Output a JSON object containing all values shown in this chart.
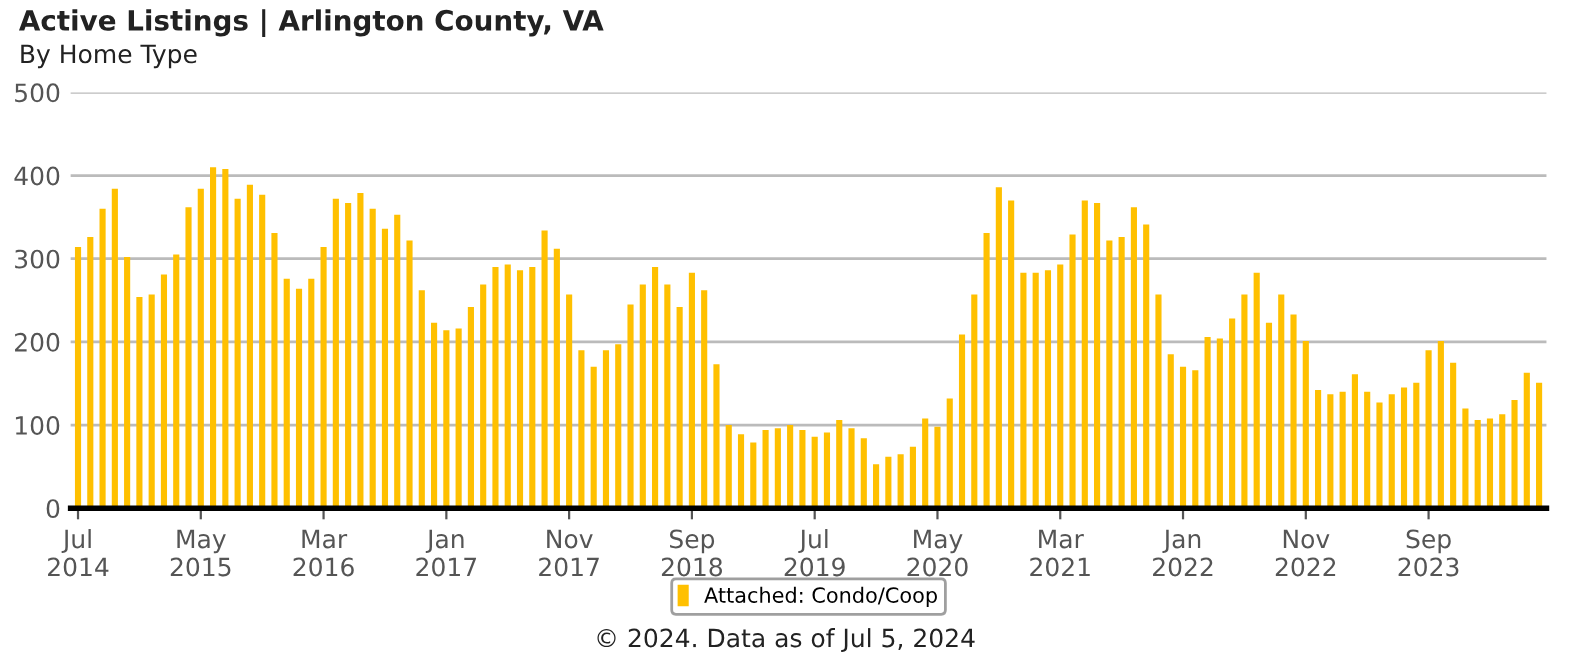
{
  "chart_data": {
    "type": "bar",
    "title": "Active Listings | Arlington County, VA",
    "subtitle": "By Home Type",
    "categories": [
      "Jul\n2014",
      null,
      null,
      null,
      null,
      null,
      null,
      null,
      null,
      null,
      "May\n2015",
      null,
      null,
      null,
      null,
      null,
      null,
      null,
      null,
      null,
      "Mar\n2016",
      null,
      null,
      null,
      null,
      null,
      null,
      null,
      null,
      null,
      "Jan\n2017",
      null,
      null,
      null,
      null,
      null,
      null,
      null,
      null,
      null,
      "Nov\n2017",
      null,
      null,
      null,
      null,
      null,
      null,
      null,
      null,
      null,
      "Sep\n2018",
      null,
      null,
      null,
      null,
      null,
      null,
      null,
      null,
      null,
      "Jul\n2019",
      null,
      null,
      null,
      null,
      null,
      null,
      null,
      null,
      null,
      "May\n2020",
      null,
      null,
      null,
      null,
      null,
      null,
      null,
      null,
      null,
      "Mar\n2021",
      null,
      null,
      null,
      null,
      null,
      null,
      null,
      null,
      null,
      "Jan\n2022",
      null,
      null,
      null,
      null,
      null,
      null,
      null,
      null,
      null,
      "Nov\n2022",
      null,
      null,
      null,
      null,
      null,
      null,
      null,
      null,
      null,
      "Sep\n2023",
      null,
      null,
      null,
      null,
      null,
      null,
      null,
      null,
      null
    ],
    "series": [
      {
        "name": "Attached: Condo/Coop",
        "color": "#ffc000",
        "values": [
          314,
          326,
          360,
          384,
          302,
          254,
          257,
          281,
          305,
          362,
          384,
          410,
          408,
          372,
          389,
          377,
          331,
          276,
          264,
          276,
          314,
          372,
          367,
          379,
          360,
          336,
          353,
          322,
          262,
          223,
          214,
          216,
          242,
          269,
          290,
          293,
          286,
          290,
          334,
          312,
          257,
          190,
          170,
          190,
          197,
          245,
          269,
          290,
          269,
          242,
          283,
          262,
          173,
          100,
          89,
          79,
          94,
          96,
          100,
          94,
          86,
          91,
          106,
          96,
          84,
          53,
          62,
          65,
          74,
          108,
          98,
          132,
          209,
          257,
          331,
          386,
          370,
          283,
          283,
          286,
          293,
          329,
          370,
          367,
          322,
          326,
          362,
          341,
          257,
          185,
          170,
          166,
          206,
          204,
          228,
          257,
          283,
          223,
          257,
          233,
          201,
          142,
          137,
          140,
          161,
          140,
          127,
          137,
          145,
          151,
          190,
          201,
          175,
          120,
          106,
          108,
          113,
          130,
          163,
          151
        ]
      }
    ],
    "ylim": [
      0,
      500
    ],
    "yticks": [
      0,
      100,
      200,
      300,
      400,
      500
    ],
    "grid": "y",
    "legend": "bottom",
    "annotations": [
      "© 2024. Data as of Jul 5, 2024"
    ]
  }
}
